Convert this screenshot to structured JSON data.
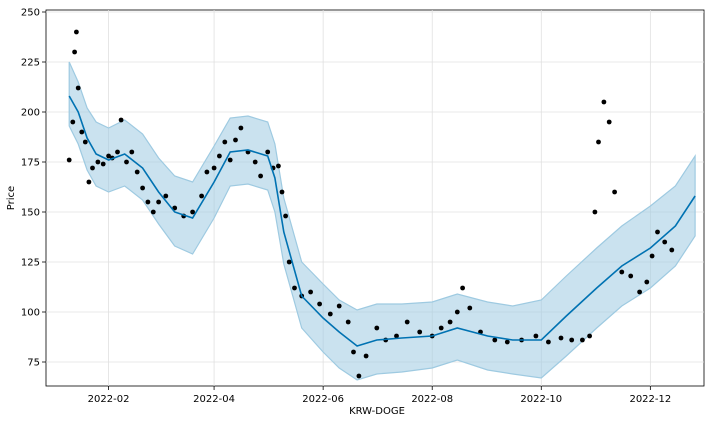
{
  "chart_data": {
    "type": "line",
    "title": "",
    "xlabel": "KRW-DOGE",
    "ylabel": "Price",
    "x_range": [
      "2021-12-28",
      "2022-12-31"
    ],
    "ylim": [
      63,
      251
    ],
    "grid": true,
    "x_ticks": [
      {
        "date": "2022-02-01",
        "label": "2022-02"
      },
      {
        "date": "2022-04-01",
        "label": "2022-04"
      },
      {
        "date": "2022-06-01",
        "label": "2022-06"
      },
      {
        "date": "2022-08-01",
        "label": "2022-08"
      },
      {
        "date": "2022-10-01",
        "label": "2022-10"
      },
      {
        "date": "2022-12-01",
        "label": "2022-12"
      }
    ],
    "y_ticks": [
      75,
      100,
      125,
      150,
      175,
      200,
      225,
      250
    ],
    "colors": {
      "forecast": "#0072B2",
      "interval": "#9ecae1",
      "observed": "#000000",
      "grid": "#e0e0e0"
    },
    "forecast": {
      "name": "yhat",
      "x": [
        "2022-01-10",
        "2022-01-15",
        "2022-01-20",
        "2022-01-25",
        "2022-02-01",
        "2022-02-10",
        "2022-02-20",
        "2022-03-01",
        "2022-03-10",
        "2022-03-20",
        "2022-04-01",
        "2022-04-10",
        "2022-04-20",
        "2022-05-01",
        "2022-05-05",
        "2022-05-10",
        "2022-05-20",
        "2022-06-01",
        "2022-06-10",
        "2022-06-20",
        "2022-07-01",
        "2022-07-15",
        "2022-08-01",
        "2022-08-15",
        "2022-09-01",
        "2022-09-15",
        "2022-10-01",
        "2022-10-15",
        "2022-11-01",
        "2022-11-15",
        "2022-12-01",
        "2022-12-15",
        "2022-12-26"
      ],
      "values": [
        208,
        200,
        187,
        179,
        176,
        179,
        172,
        160,
        150,
        147,
        165,
        180,
        181,
        178,
        167,
        140,
        108,
        97,
        90,
        83,
        86,
        87,
        88,
        92,
        88,
        86,
        86,
        98,
        112,
        123,
        132,
        143,
        158
      ]
    },
    "interval_upper": {
      "name": "yhat_upper",
      "values": [
        225,
        215,
        202,
        195,
        192,
        196,
        189,
        177,
        168,
        165,
        183,
        197,
        198,
        195,
        184,
        157,
        125,
        114,
        106,
        101,
        104,
        104,
        105,
        109,
        105,
        103,
        106,
        118,
        132,
        143,
        153,
        163,
        178
      ]
    },
    "interval_lower": {
      "name": "yhat_lower",
      "values": [
        193,
        184,
        171,
        163,
        160,
        163,
        156,
        144,
        133,
        129,
        147,
        163,
        164,
        161,
        150,
        124,
        92,
        80,
        72,
        66,
        69,
        70,
        72,
        76,
        71,
        69,
        67,
        78,
        92,
        103,
        112,
        123,
        138
      ]
    },
    "observed": {
      "name": "y",
      "x": [
        "2022-01-10",
        "2022-01-12",
        "2022-01-13",
        "2022-01-14",
        "2022-01-15",
        "2022-01-17",
        "2022-01-19",
        "2022-01-21",
        "2022-01-23",
        "2022-01-26",
        "2022-01-29",
        "2022-02-01",
        "2022-02-03",
        "2022-02-06",
        "2022-02-08",
        "2022-02-11",
        "2022-02-14",
        "2022-02-17",
        "2022-02-20",
        "2022-02-23",
        "2022-02-26",
        "2022-03-01",
        "2022-03-05",
        "2022-03-10",
        "2022-03-15",
        "2022-03-20",
        "2022-03-25",
        "2022-03-28",
        "2022-04-01",
        "2022-04-04",
        "2022-04-07",
        "2022-04-10",
        "2022-04-13",
        "2022-04-16",
        "2022-04-20",
        "2022-04-24",
        "2022-04-27",
        "2022-05-01",
        "2022-05-04",
        "2022-05-07",
        "2022-05-09",
        "2022-05-11",
        "2022-05-13",
        "2022-05-16",
        "2022-05-20",
        "2022-05-25",
        "2022-05-30",
        "2022-06-05",
        "2022-06-10",
        "2022-06-15",
        "2022-06-18",
        "2022-06-21",
        "2022-06-25",
        "2022-07-01",
        "2022-07-06",
        "2022-07-12",
        "2022-07-18",
        "2022-07-25",
        "2022-08-01",
        "2022-08-06",
        "2022-08-11",
        "2022-08-15",
        "2022-08-18",
        "2022-08-22",
        "2022-08-28",
        "2022-09-05",
        "2022-09-12",
        "2022-09-20",
        "2022-09-28",
        "2022-10-05",
        "2022-10-12",
        "2022-10-18",
        "2022-10-24",
        "2022-10-28",
        "2022-10-31",
        "2022-11-02",
        "2022-11-05",
        "2022-11-08",
        "2022-11-11",
        "2022-11-15",
        "2022-11-20",
        "2022-11-25",
        "2022-11-29",
        "2022-12-02",
        "2022-12-05",
        "2022-12-09",
        "2022-12-13"
      ],
      "values": [
        176,
        195,
        230,
        240,
        212,
        190,
        185,
        165,
        172,
        175,
        174,
        178,
        177,
        180,
        196,
        175,
        180,
        170,
        162,
        155,
        150,
        155,
        158,
        152,
        148,
        150,
        158,
        170,
        172,
        178,
        185,
        176,
        186,
        192,
        180,
        175,
        168,
        180,
        172,
        173,
        160,
        148,
        125,
        112,
        108,
        110,
        104,
        99,
        103,
        95,
        80,
        68,
        78,
        92,
        86,
        88,
        95,
        90,
        88,
        92,
        95,
        100,
        112,
        102,
        90,
        86,
        85,
        86,
        88,
        85,
        87,
        86,
        86,
        88,
        150,
        185,
        205,
        195,
        160,
        120,
        118,
        110,
        115,
        128,
        140,
        135,
        131
      ]
    }
  }
}
